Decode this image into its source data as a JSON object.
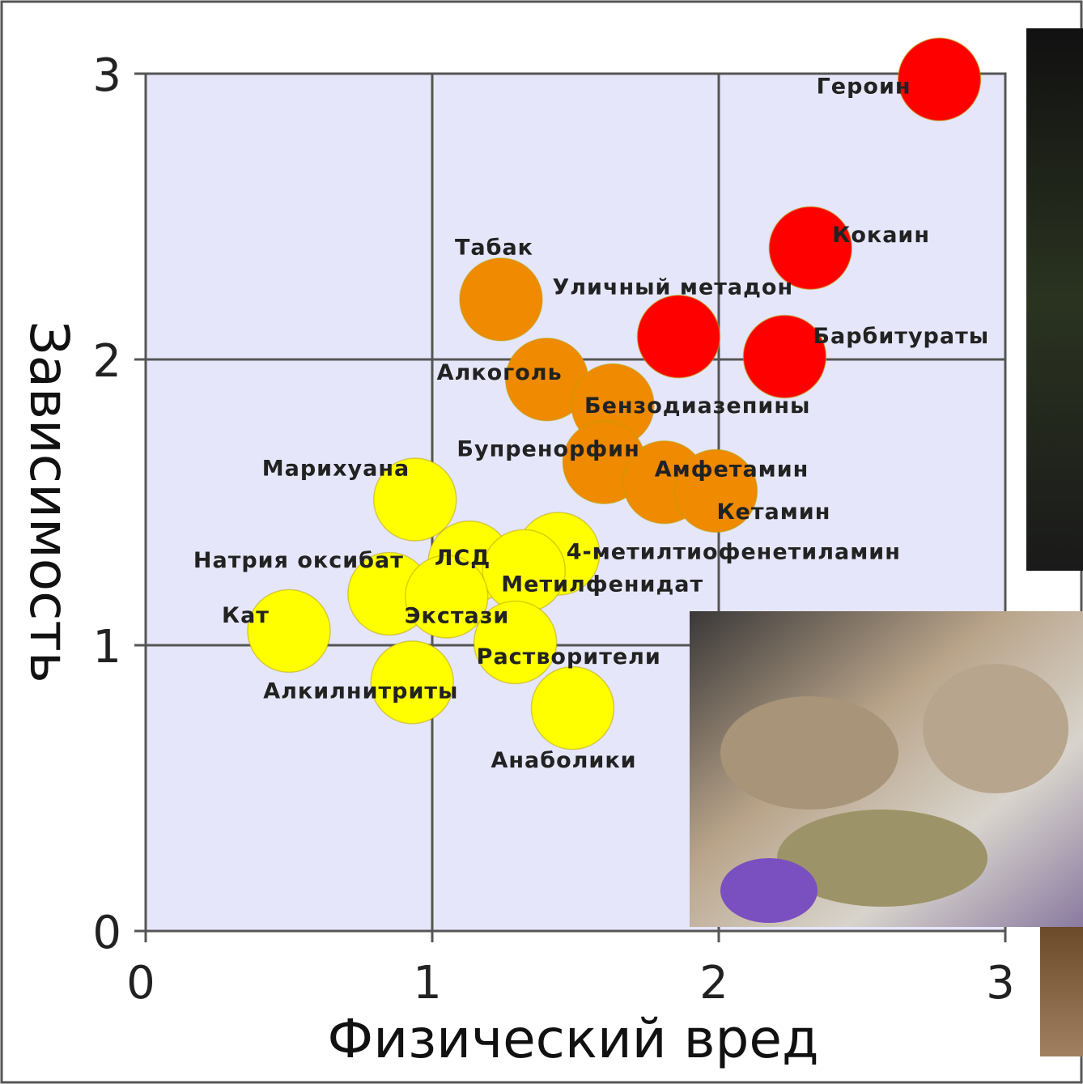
{
  "chart_data": {
    "type": "scatter",
    "xlabel": "Физический вред",
    "ylabel": "Зависимость",
    "xlim": [
      0,
      3
    ],
    "ylim": [
      0,
      3
    ],
    "xticks": [
      0,
      1,
      2,
      3
    ],
    "yticks": [
      0,
      1,
      2,
      3
    ],
    "grid": true,
    "labels": [
      "Героин",
      "Кокаин",
      "Уличный метадон",
      "Барбитураты",
      "Табак",
      "Алкоголь",
      "Бензодиазепины",
      "Бупренорфин",
      "Амфетамин",
      "Кетамин",
      "Марихуана",
      "4-метилтиофенетиламин",
      "ЛСД",
      "Метилфенидат",
      "Натрия оксибат",
      "Экстази",
      "Кат",
      "Растворители",
      "Алкилнитриты",
      "Анаболики"
    ],
    "x": [
      2.77,
      2.32,
      1.86,
      2.23,
      1.24,
      1.4,
      1.63,
      1.6,
      1.81,
      1.99,
      0.94,
      1.44,
      1.13,
      1.32,
      0.85,
      1.05,
      0.5,
      1.29,
      0.93,
      1.49
    ],
    "y": [
      2.98,
      2.39,
      2.08,
      2.01,
      2.21,
      1.93,
      1.84,
      1.64,
      1.57,
      1.54,
      1.51,
      1.32,
      1.29,
      1.26,
      1.18,
      1.17,
      1.05,
      1.01,
      0.87,
      0.78
    ],
    "colors": [
      "#ff0000",
      "#ff0000",
      "#ff0000",
      "#ff0000",
      "#f08a00",
      "#f08a00",
      "#f08a00",
      "#f08a00",
      "#f08a00",
      "#f08a00",
      "#ffff00",
      "#ffff00",
      "#ffff00",
      "#ffff00",
      "#ffff00",
      "#ffff00",
      "#ffff00",
      "#ffff00",
      "#ffff00",
      "#ffff00"
    ]
  }
}
